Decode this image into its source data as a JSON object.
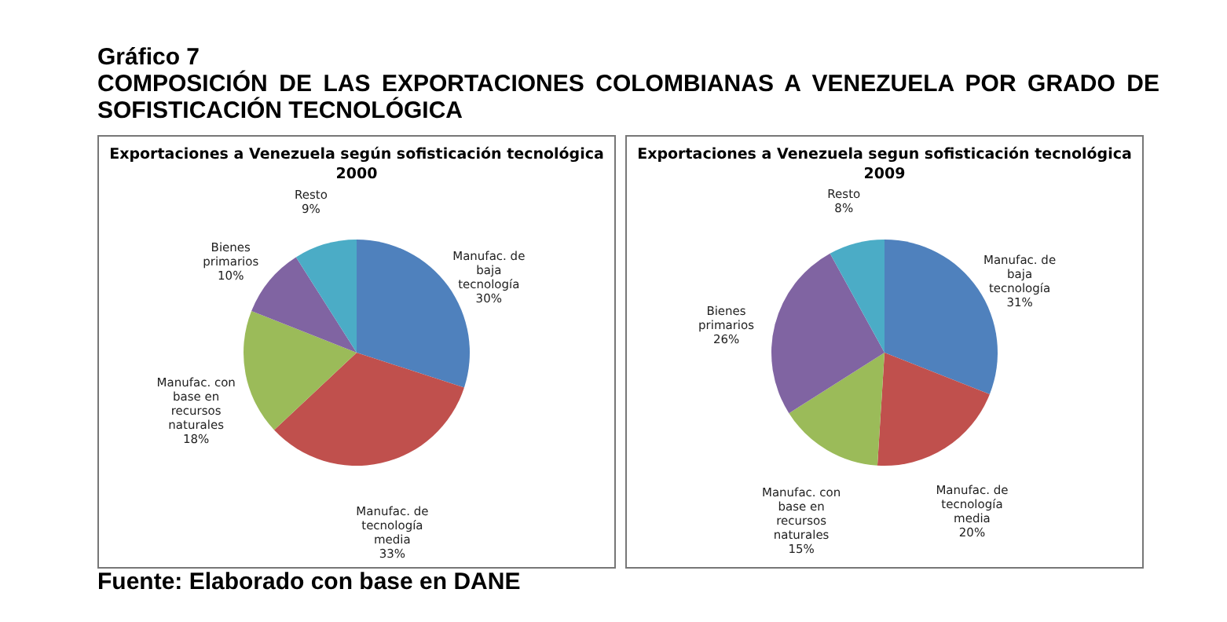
{
  "chart_data": [
    {
      "type": "pie",
      "title": "Exportaciones a Venezuela según sofisticación tecnológica",
      "subtitle": "2000",
      "annotations": [
        "Gráfico 7",
        "COMPOSICIÓN DE LAS EXPORTACIONES COLOMBIANAS A VENEZUELA POR GRADO DE SOFISTICACIÓN TECNOLÓGICA",
        "Fuente: Elaborado con base en DANE"
      ],
      "categories": [
        "Manufac. de baja tecnología",
        "Manufac. de tecnología media",
        "Manufac. con base en recursos naturales",
        "Bienes primarios",
        "Resto"
      ],
      "values": [
        30,
        33,
        18,
        10,
        9
      ],
      "value_labels": [
        "30%",
        "33%",
        "18%",
        "10%",
        "9%"
      ],
      "colors": [
        "#4f81bd",
        "#c0504d",
        "#9bbb59",
        "#8064a2",
        "#4bacc6"
      ]
    },
    {
      "type": "pie",
      "title": "Exportaciones a Venezuela segun sofisticación tecnológica",
      "subtitle": "2009",
      "categories": [
        "Manufac. de baja tecnología",
        "Manufac. de tecnología media",
        "Manufac. con base en recursos naturales",
        "Bienes primarios",
        "Resto"
      ],
      "values": [
        31,
        20,
        15,
        26,
        8
      ],
      "value_labels": [
        "31%",
        "20%",
        "15%",
        "26%",
        "8%"
      ],
      "colors": [
        "#4f81bd",
        "#c0504d",
        "#9bbb59",
        "#8064a2",
        "#4bacc6"
      ]
    }
  ]
}
